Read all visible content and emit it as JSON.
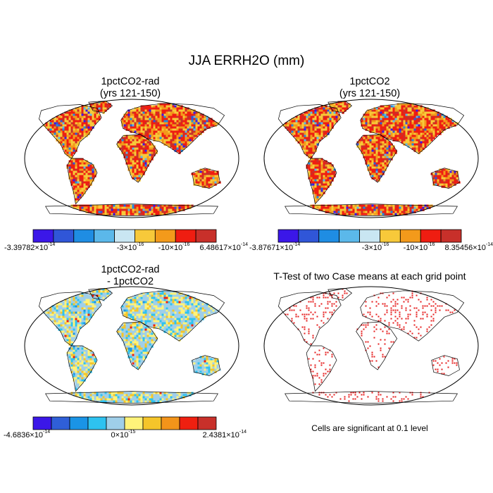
{
  "title": "JJA ERRH2O (mm)",
  "panels": [
    {
      "id": "p1",
      "title": "1pctCO2-rad\n(yrs 121-150)",
      "kind": "field",
      "palette": "main",
      "colorbar": {
        "labels": [
          {
            "mant": "-3.39782",
            "exp": "-14"
          },
          {
            "mant": "-3",
            "exp": "-16"
          },
          {
            "mant": "-10",
            "exp": "-16"
          },
          {
            "mant": "6.48617",
            "exp": "-14"
          }
        ]
      }
    },
    {
      "id": "p2",
      "title": "1pctCO2\n(yrs 121-150)",
      "kind": "field",
      "palette": "main",
      "colorbar": {
        "labels": [
          {
            "mant": "-3.87671",
            "exp": "-14"
          },
          {
            "mant": "-3",
            "exp": "-16"
          },
          {
            "mant": "-10",
            "exp": "-16"
          },
          {
            "mant": "8.35456",
            "exp": "-14"
          }
        ]
      }
    },
    {
      "id": "p3",
      "title": "1pctCO2-rad\n- 1pctCO2",
      "kind": "diff",
      "palette": "diff",
      "colorbar": {
        "labels": [
          {
            "mant": "-4.6836",
            "exp": "-14"
          },
          {
            "mant": "0",
            "exp": "-15"
          },
          {
            "mant": "2.4381",
            "exp": "-14"
          }
        ]
      }
    },
    {
      "id": "p4",
      "title": "T-Test of two Case means at each grid point",
      "kind": "ttest",
      "note": "Cells are significant at 0.1 level"
    }
  ],
  "palettes": {
    "main": [
      "#3b17e8",
      "#3056d8",
      "#1f8de3",
      "#5bb8ea",
      "#c9e6f2",
      "#f7c93a",
      "#f39a1b",
      "#ef1d11",
      "#c8302a"
    ],
    "diff": [
      "#3b17e8",
      "#2f5fd8",
      "#1a94e6",
      "#2ec2f0",
      "#9fcfe9",
      "#fff37a",
      "#f5c52a",
      "#f3941a",
      "#ef2010",
      "#c8302a"
    ]
  },
  "colors": {
    "coast": "#000000",
    "ttest": "#e61d1d"
  },
  "sci_times": "×10"
}
